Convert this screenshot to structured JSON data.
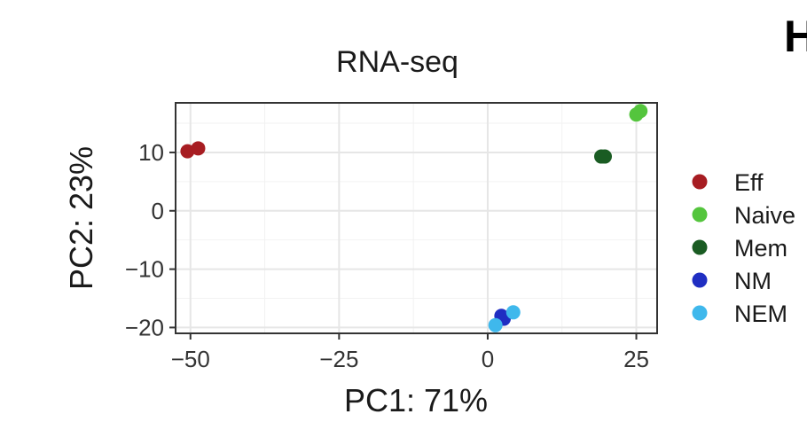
{
  "panel_letter": "H",
  "chart_data": {
    "type": "scatter",
    "title": "RNA-seq",
    "xlabel": "PC1: 71%",
    "ylabel": "PC2: 23%",
    "xlim": [
      -52.5,
      28.5
    ],
    "ylim": [
      -21.0,
      18.5
    ],
    "x_ticks": [
      -50,
      -25,
      0,
      25
    ],
    "x_tick_labels": [
      "−50",
      "−25",
      "0",
      "25"
    ],
    "y_ticks": [
      -20,
      -10,
      0,
      10
    ],
    "y_tick_labels": [
      "−20",
      "−10",
      "0",
      "10"
    ],
    "grid": true,
    "legend_position": "right",
    "series": [
      {
        "name": "Eff",
        "color": "#a71d22",
        "points": [
          [
            -50.5,
            10.2
          ],
          [
            -48.7,
            10.7
          ]
        ]
      },
      {
        "name": "Naive",
        "color": "#54c53d",
        "points": [
          [
            25.0,
            16.5
          ],
          [
            25.7,
            17.1
          ]
        ]
      },
      {
        "name": "Mem",
        "color": "#1a5c23",
        "points": [
          [
            19.1,
            9.3
          ],
          [
            19.7,
            9.3
          ]
        ]
      },
      {
        "name": "NM",
        "color": "#1f2ec2",
        "points": [
          [
            2.3,
            -18.0
          ],
          [
            2.7,
            -18.5
          ]
        ]
      },
      {
        "name": "NEM",
        "color": "#3fb8ec",
        "points": [
          [
            4.3,
            -17.4
          ],
          [
            1.3,
            -19.6
          ]
        ]
      }
    ]
  }
}
